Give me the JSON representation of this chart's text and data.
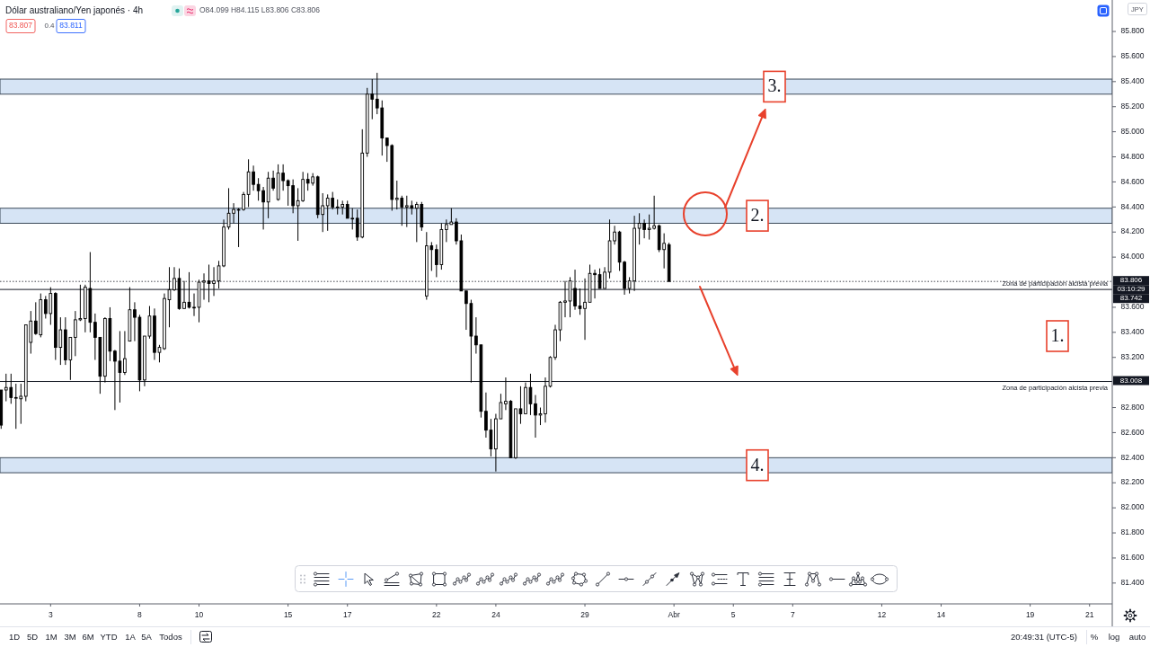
{
  "chart_data": {
    "type": "candlestick",
    "title": "Dólar australiano/Yen japonés · 4h",
    "ylabel": "JPY",
    "color": "#000000",
    "categories": [
      null,
      null,
      null,
      null,
      null,
      null,
      null,
      null,
      null,
      null,
      "3",
      null,
      null,
      null,
      null,
      null,
      null,
      null,
      null,
      null,
      null,
      null,
      null,
      null,
      null,
      null,
      null,
      null,
      "8",
      null,
      null,
      null,
      null,
      null,
      null,
      null,
      null,
      null,
      null,
      null,
      "10",
      null,
      null,
      null,
      null,
      null,
      null,
      null,
      null,
      null,
      null,
      null,
      null,
      null,
      null,
      null,
      null,
      null,
      "15",
      null,
      null,
      null,
      null,
      null,
      null,
      null,
      null,
      null,
      null,
      null,
      "17",
      null,
      null,
      null,
      null,
      null,
      null,
      null,
      null,
      null,
      null,
      null,
      null,
      null,
      null,
      null,
      null,
      null,
      "22",
      null,
      null,
      null,
      null,
      null,
      null,
      null,
      null,
      null,
      null,
      null,
      "24",
      null,
      null,
      null,
      null,
      null,
      null,
      null,
      null,
      null,
      null,
      null,
      null,
      null,
      null,
      null,
      null,
      null,
      "29",
      null,
      null,
      null,
      null,
      null,
      null,
      null,
      null,
      null,
      null,
      null,
      null,
      null,
      null,
      null,
      null,
      null,
      "Abr",
      null,
      null,
      null,
      null,
      null,
      null,
      null,
      null,
      null,
      null,
      null,
      "5",
      null,
      null,
      null,
      null,
      null,
      null,
      null,
      null,
      null,
      null,
      null,
      "7",
      null,
      null,
      null,
      null,
      null,
      null,
      null,
      null,
      null,
      null,
      null,
      null,
      null,
      null,
      null,
      null,
      null,
      "12",
      null,
      null,
      null,
      null,
      null,
      null,
      null,
      null,
      null,
      null,
      null,
      "14",
      null,
      null,
      null,
      null,
      null,
      null,
      null,
      null,
      null,
      null,
      null,
      null,
      null,
      null,
      null,
      null,
      null,
      "19",
      null,
      null,
      null,
      null,
      null,
      null,
      null,
      null,
      null,
      null,
      null,
      "21",
      null,
      null,
      null,
      null
    ],
    "ohlc": [
      [
        82.94,
        82.94,
        82.63,
        82.66
      ],
      [
        82.94,
        83.07,
        82.85,
        82.96
      ],
      [
        82.96,
        83.07,
        82.83,
        82.88
      ],
      [
        82.88,
        82.99,
        82.63,
        82.88
      ],
      [
        82.87,
        82.99,
        82.67,
        82.89
      ],
      [
        82.89,
        83.46,
        82.85,
        83.46
      ],
      [
        83.32,
        83.57,
        83.23,
        83.49
      ],
      [
        83.49,
        83.64,
        83.38,
        83.39
      ],
      [
        83.38,
        83.71,
        83.36,
        83.66
      ],
      [
        83.66,
        83.69,
        83.51,
        83.55
      ],
      [
        83.55,
        83.76,
        83.46,
        83.71
      ],
      [
        83.71,
        83.72,
        83.18,
        83.28
      ],
      [
        83.28,
        83.52,
        83.14,
        83.42
      ],
      [
        83.42,
        83.52,
        83.14,
        83.18
      ],
      [
        83.18,
        83.36,
        83.02,
        83.36
      ],
      [
        83.36,
        83.57,
        83.21,
        83.5
      ],
      [
        83.5,
        83.78,
        83.49,
        83.51
      ],
      [
        83.51,
        83.78,
        83.4,
        83.76
      ],
      [
        83.75,
        84.04,
        83.4,
        83.48
      ],
      [
        83.48,
        83.55,
        83.18,
        83.36
      ],
      [
        83.36,
        83.36,
        82.91,
        83.05
      ],
      [
        83.05,
        83.52,
        83.0,
        83.51
      ],
      [
        83.51,
        83.6,
        83.17,
        83.25
      ],
      [
        83.25,
        83.26,
        82.78,
        83.17
      ],
      [
        83.17,
        83.41,
        82.84,
        83.08
      ],
      [
        83.08,
        83.41,
        83.06,
        83.19
      ],
      [
        83.33,
        83.76,
        83.33,
        83.58
      ],
      [
        83.58,
        83.64,
        83.33,
        83.52
      ],
      [
        83.52,
        83.54,
        82.93,
        83.02
      ],
      [
        83.02,
        83.37,
        82.97,
        83.37
      ],
      [
        83.37,
        83.61,
        83.35,
        83.53
      ],
      [
        83.53,
        83.59,
        83.18,
        83.24
      ],
      [
        83.24,
        83.3,
        83.16,
        83.28
      ],
      [
        83.27,
        83.71,
        83.26,
        83.67
      ],
      [
        83.66,
        83.92,
        83.44,
        83.74
      ],
      [
        83.74,
        83.92,
        83.73,
        83.83
      ],
      [
        83.83,
        83.91,
        83.58,
        83.59
      ],
      [
        83.59,
        83.81,
        83.59,
        83.64
      ],
      [
        83.64,
        83.88,
        83.59,
        83.6
      ],
      [
        83.6,
        83.71,
        83.53,
        83.6
      ],
      [
        83.6,
        83.82,
        83.48,
        83.8
      ],
      [
        83.8,
        83.87,
        83.66,
        83.81
      ],
      [
        83.81,
        83.94,
        83.64,
        83.79
      ],
      [
        83.79,
        83.92,
        83.69,
        83.81
      ],
      [
        83.81,
        83.97,
        83.75,
        83.93
      ],
      [
        83.93,
        84.3,
        83.92,
        84.24
      ],
      [
        84.24,
        84.55,
        84.22,
        84.35
      ],
      [
        84.35,
        84.43,
        84.27,
        84.38
      ],
      [
        84.38,
        84.39,
        84.08,
        84.38
      ],
      [
        84.38,
        84.52,
        84.37,
        84.5
      ],
      [
        84.5,
        84.78,
        84.4,
        84.68
      ],
      [
        84.68,
        84.73,
        84.53,
        84.58
      ],
      [
        84.58,
        84.63,
        84.45,
        84.53
      ],
      [
        84.53,
        84.56,
        84.22,
        84.44
      ],
      [
        84.44,
        84.68,
        84.31,
        84.63
      ],
      [
        84.63,
        84.69,
        84.53,
        84.55
      ],
      [
        84.46,
        84.74,
        84.45,
        84.67
      ],
      [
        84.67,
        84.74,
        84.53,
        84.61
      ],
      [
        84.61,
        84.62,
        84.41,
        84.57
      ],
      [
        84.57,
        84.62,
        84.35,
        84.41
      ],
      [
        84.41,
        84.55,
        84.13,
        84.45
      ],
      [
        84.45,
        84.68,
        84.44,
        84.62
      ],
      [
        84.62,
        84.67,
        84.53,
        84.59
      ],
      [
        84.59,
        84.67,
        84.57,
        84.64
      ],
      [
        84.64,
        84.65,
        84.31,
        84.34
      ],
      [
        84.34,
        84.51,
        84.2,
        84.41
      ],
      [
        84.41,
        84.5,
        84.21,
        84.47
      ],
      [
        84.47,
        84.52,
        84.38,
        84.4
      ],
      [
        84.4,
        84.46,
        84.34,
        84.4
      ],
      [
        84.4,
        84.45,
        84.34,
        84.42
      ],
      [
        84.42,
        84.45,
        84.31,
        84.31
      ],
      [
        84.31,
        84.39,
        84.22,
        84.31
      ],
      [
        84.31,
        84.38,
        84.13,
        84.16
      ],
      [
        84.16,
        85.02,
        84.15,
        84.83
      ],
      [
        84.83,
        85.35,
        84.8,
        85.3
      ],
      [
        85.3,
        85.42,
        85.1,
        85.26
      ],
      [
        85.26,
        85.47,
        85.14,
        85.19
      ],
      [
        85.19,
        85.25,
        84.81,
        84.95
      ],
      [
        84.95,
        84.95,
        84.76,
        84.89
      ],
      [
        84.89,
        84.9,
        84.37,
        84.46
      ],
      [
        84.46,
        84.61,
        84.38,
        84.47
      ],
      [
        84.47,
        84.49,
        84.25,
        84.4
      ],
      [
        84.4,
        84.49,
        84.24,
        84.41
      ],
      [
        84.41,
        84.45,
        84.34,
        84.39
      ],
      [
        84.39,
        84.44,
        84.12,
        84.42
      ],
      [
        84.42,
        84.44,
        84.21,
        84.24
      ],
      [
        83.69,
        84.2,
        83.66,
        84.09
      ],
      [
        84.09,
        84.12,
        83.89,
        84.06
      ],
      [
        84.06,
        84.1,
        83.84,
        83.94
      ],
      [
        83.94,
        84.27,
        83.9,
        84.22
      ],
      [
        84.22,
        84.3,
        84.12,
        84.26
      ],
      [
        84.26,
        84.39,
        84.26,
        84.28
      ],
      [
        84.28,
        84.31,
        84.1,
        84.13
      ],
      [
        84.13,
        84.18,
        83.73,
        83.73
      ],
      [
        83.73,
        83.73,
        83.42,
        83.63
      ],
      [
        83.63,
        83.66,
        83.0,
        83.37
      ],
      [
        83.37,
        83.52,
        83.23,
        83.3
      ],
      [
        83.3,
        83.3,
        82.72,
        82.77
      ],
      [
        82.77,
        82.92,
        82.56,
        82.62
      ],
      [
        82.62,
        82.71,
        82.41,
        82.47
      ],
      [
        82.47,
        82.75,
        82.29,
        82.71
      ],
      [
        82.71,
        82.91,
        82.71,
        82.84
      ],
      [
        82.83,
        83.04,
        82.78,
        82.85
      ],
      [
        82.85,
        82.86,
        82.4,
        82.4
      ],
      [
        82.4,
        82.79,
        82.39,
        82.79
      ],
      [
        82.79,
        82.97,
        82.67,
        82.75
      ],
      [
        82.75,
        83.0,
        82.75,
        82.96
      ],
      [
        82.96,
        83.07,
        82.74,
        82.83
      ],
      [
        82.83,
        82.9,
        82.56,
        82.74
      ],
      [
        82.74,
        82.8,
        82.66,
        82.75
      ],
      [
        82.75,
        83.04,
        82.68,
        82.97
      ],
      [
        82.97,
        83.21,
        82.96,
        83.2
      ],
      [
        83.2,
        83.46,
        83.18,
        83.42
      ],
      [
        83.42,
        83.65,
        83.33,
        83.64
      ],
      [
        83.64,
        83.81,
        83.52,
        83.65
      ],
      [
        83.65,
        83.84,
        83.52,
        83.81
      ],
      [
        83.75,
        83.9,
        83.58,
        83.61
      ],
      [
        83.61,
        83.75,
        83.54,
        83.59
      ],
      [
        83.59,
        83.83,
        83.34,
        83.64
      ],
      [
        83.64,
        83.94,
        83.64,
        83.87
      ],
      [
        83.87,
        83.9,
        83.67,
        83.86
      ],
      [
        83.86,
        83.91,
        83.75,
        83.75
      ],
      [
        83.75,
        83.92,
        83.75,
        83.88
      ],
      [
        83.88,
        84.3,
        83.83,
        84.13
      ],
      [
        84.13,
        84.25,
        84.1,
        84.2
      ],
      [
        84.2,
        84.21,
        83.89,
        83.96
      ],
      [
        83.96,
        83.97,
        83.7,
        83.75
      ],
      [
        83.75,
        83.84,
        83.71,
        83.81
      ],
      [
        83.81,
        84.33,
        83.73,
        84.23
      ],
      [
        84.23,
        84.35,
        84.1,
        84.27
      ],
      [
        84.27,
        84.3,
        84.15,
        84.22
      ],
      [
        84.22,
        84.34,
        84.14,
        84.23
      ],
      [
        84.23,
        84.49,
        84.22,
        84.25
      ],
      [
        84.25,
        84.26,
        84.04,
        84.06
      ],
      [
        84.06,
        84.19,
        83.91,
        84.11
      ],
      [
        84.099,
        84.115,
        83.806,
        83.806
      ],
      null,
      null,
      null,
      null,
      null,
      null,
      null,
      null,
      null,
      null,
      null,
      null,
      null,
      null,
      null,
      null,
      null,
      null,
      null,
      null,
      null,
      null,
      null,
      null,
      null,
      null,
      null,
      null,
      null,
      null,
      null,
      null,
      null,
      null,
      null,
      null,
      null,
      null,
      null,
      null,
      null,
      null,
      null,
      null,
      null,
      null,
      null,
      null,
      null,
      null,
      null,
      null,
      null,
      null,
      null,
      null,
      null,
      null,
      null,
      null,
      null,
      null,
      null,
      null,
      null,
      null,
      null,
      null,
      null,
      null,
      null,
      null,
      null,
      null,
      null,
      null,
      null,
      null,
      null,
      null,
      null,
      null,
      null,
      null,
      null,
      null,
      null,
      null,
      null
    ],
    "ylim": [
      81.234,
      86.051
    ],
    "yticks": [
      {
        "value": 81.4,
        "label": "81.400"
      },
      {
        "value": 81.6,
        "label": "81.600"
      },
      {
        "value": 81.8,
        "label": "81.800"
      },
      {
        "value": 82.0,
        "label": "82.000"
      },
      {
        "value": 82.2,
        "label": "82.200"
      },
      {
        "value": 82.4,
        "label": "82.400"
      },
      {
        "value": 82.6,
        "label": "82.600"
      },
      {
        "value": 82.8,
        "label": "82.800"
      },
      {
        "value": 83.2,
        "label": "83.200"
      },
      {
        "value": 83.4,
        "label": "83.400"
      },
      {
        "value": 83.6,
        "label": "83.600"
      },
      {
        "value": 84.0,
        "label": "84.000"
      },
      {
        "value": 84.2,
        "label": "84.200"
      },
      {
        "value": 84.4,
        "label": "84.400"
      },
      {
        "value": 84.6,
        "label": "84.600"
      },
      {
        "value": 84.8,
        "label": "84.800"
      },
      {
        "value": 85.0,
        "label": "85.000"
      },
      {
        "value": 85.2,
        "label": "85.200"
      },
      {
        "value": 85.4,
        "label": "85.400"
      },
      {
        "value": 85.6,
        "label": "85.600"
      },
      {
        "value": 85.8,
        "label": "85.800"
      }
    ],
    "ref_lines": [
      {
        "axis": "y",
        "value": 83.742,
        "label": "Zona de participación alcista previa",
        "color": "#131722"
      },
      {
        "axis": "y",
        "value": 83.008,
        "label": "Zona de participación alcista previa",
        "color": "#131722"
      },
      {
        "axis": "y",
        "value": 83.806,
        "color": "#131722",
        "line_style": "dotted"
      }
    ],
    "bands": [
      {
        "axis": "y",
        "from": 85.3,
        "to": 85.42,
        "label": "3.",
        "color": "#d6e4f5"
      },
      {
        "axis": "y",
        "from": 84.27,
        "to": 84.39,
        "label": "2.",
        "color": "#d6e4f5"
      },
      {
        "axis": "y",
        "from": 82.28,
        "to": 82.4,
        "label": "4.",
        "color": "#d6e4f5"
      }
    ],
    "annotations": [
      "O84.099 H84.115 L83.806 C83.806",
      "83.807",
      "0.4",
      "83.811",
      "1.",
      "20:49:31 (UTC-5)",
      "1D",
      "5D",
      "1M",
      "3M",
      "6M",
      "YTD",
      "1A",
      "5A",
      "Todos",
      "%",
      "log",
      "auto",
      "83.806",
      "03:10:29",
      "83.742",
      "83.008"
    ]
  }
}
